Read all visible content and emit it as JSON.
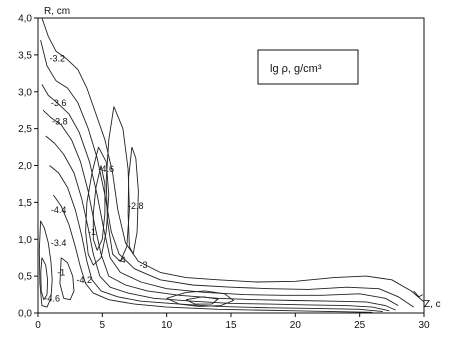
{
  "chart_data": {
    "type": "contour",
    "xlabel": "Z, c",
    "ylabel": "R, cm",
    "xlim": [
      0,
      30
    ],
    "ylim": [
      0,
      4.0
    ],
    "x_ticks": [
      {
        "value": 0,
        "label": "0"
      },
      {
        "value": 5,
        "label": "5"
      },
      {
        "value": 10,
        "label": "10"
      },
      {
        "value": 15,
        "label": "15"
      },
      {
        "value": 20,
        "label": "20"
      },
      {
        "value": 25,
        "label": "25"
      },
      {
        "value": 30,
        "label": "30"
      }
    ],
    "y_ticks": [
      {
        "value": 0.0,
        "label": "0,0"
      },
      {
        "value": 0.5,
        "label": "0,5"
      },
      {
        "value": 1.0,
        "label": "1,0"
      },
      {
        "value": 1.5,
        "label": "1,5"
      },
      {
        "value": 2.0,
        "label": "2,0"
      },
      {
        "value": 2.5,
        "label": "2,5"
      },
      {
        "value": 3.0,
        "label": "3,0"
      },
      {
        "value": 3.5,
        "label": "3,5"
      },
      {
        "value": 4.0,
        "label": "4,0"
      }
    ],
    "legend": {
      "text": "lg ρ, g/cm³",
      "placement": "top-right"
    },
    "grid": false,
    "contour_labels": [
      {
        "text": "-3.2",
        "x": 1.5,
        "y": 3.45
      },
      {
        "text": "-3.6",
        "x": 1.6,
        "y": 2.85
      },
      {
        "text": "-3.8",
        "x": 1.7,
        "y": 2.6
      },
      {
        "text": "-4.4",
        "x": 1.6,
        "y": 1.4
      },
      {
        "text": "-3.4",
        "x": 1.6,
        "y": 0.95
      },
      {
        "text": "-4.6",
        "x": 1.1,
        "y": 0.2
      },
      {
        "text": "-4.2",
        "x": 3.6,
        "y": 0.45
      },
      {
        "text": "-4.6",
        "x": 5.3,
        "y": 1.95
      },
      {
        "text": "-2.8",
        "x": 7.6,
        "y": 1.45
      },
      {
        "text": "-4",
        "x": 6.5,
        "y": 0.72
      },
      {
        "text": "-3",
        "x": 8.2,
        "y": 0.65
      },
      {
        "text": "-1",
        "x": 1.8,
        "y": 0.55
      },
      {
        "text": "-1",
        "x": 4.2,
        "y": 1.1
      }
    ],
    "contours": [
      {
        "points": [
          [
            0.3,
            4.0
          ],
          [
            0.8,
            3.75
          ],
          [
            1.4,
            3.55
          ],
          [
            2.2,
            3.45
          ],
          [
            3.1,
            3.3
          ],
          [
            3.8,
            3.05
          ],
          [
            4.5,
            2.7
          ],
          [
            5.2,
            2.35
          ],
          [
            5.8,
            1.9
          ],
          [
            6.2,
            1.4
          ],
          [
            6.8,
            0.95
          ],
          [
            7.8,
            0.7
          ],
          [
            9.5,
            0.55
          ],
          [
            11.5,
            0.48
          ],
          [
            14,
            0.45
          ],
          [
            17,
            0.42
          ],
          [
            20,
            0.43
          ],
          [
            23,
            0.48
          ],
          [
            25.5,
            0.5
          ],
          [
            27.5,
            0.45
          ],
          [
            29,
            0.3
          ],
          [
            30,
            0.15
          ]
        ]
      },
      {
        "points": [
          [
            0.2,
            3.7
          ],
          [
            0.7,
            3.35
          ],
          [
            1.4,
            3.15
          ],
          [
            2.3,
            3.05
          ],
          [
            3.1,
            2.85
          ],
          [
            3.9,
            2.5
          ],
          [
            4.6,
            2.1
          ],
          [
            5.2,
            1.6
          ],
          [
            5.7,
            1.1
          ],
          [
            6.3,
            0.8
          ],
          [
            7.5,
            0.6
          ],
          [
            9.5,
            0.45
          ],
          [
            12,
            0.38
          ],
          [
            15,
            0.35
          ],
          [
            18,
            0.33
          ],
          [
            21,
            0.32
          ],
          [
            24,
            0.35
          ],
          [
            26.5,
            0.33
          ],
          [
            28,
            0.22
          ],
          [
            29.2,
            0.08
          ]
        ]
      },
      {
        "points": [
          [
            0.3,
            3.1
          ],
          [
            0.8,
            2.95
          ],
          [
            1.5,
            2.85
          ],
          [
            2.4,
            2.7
          ],
          [
            3.2,
            2.45
          ],
          [
            4,
            2.05
          ],
          [
            4.6,
            1.6
          ],
          [
            5.1,
            1.15
          ],
          [
            5.6,
            0.75
          ],
          [
            6.4,
            0.55
          ],
          [
            8,
            0.42
          ],
          [
            10,
            0.33
          ],
          [
            13,
            0.28
          ],
          [
            16,
            0.25
          ],
          [
            19,
            0.24
          ],
          [
            22,
            0.24
          ],
          [
            25,
            0.26
          ],
          [
            27,
            0.2
          ],
          [
            28,
            0.1
          ]
        ]
      },
      {
        "points": [
          [
            0.4,
            2.75
          ],
          [
            1,
            2.65
          ],
          [
            1.8,
            2.55
          ],
          [
            2.6,
            2.35
          ],
          [
            3.3,
            2.05
          ],
          [
            3.9,
            1.65
          ],
          [
            4.4,
            1.2
          ],
          [
            4.9,
            0.8
          ],
          [
            5.5,
            0.5
          ],
          [
            6.8,
            0.38
          ],
          [
            8.5,
            0.3
          ],
          [
            11,
            0.24
          ],
          [
            14,
            0.2
          ],
          [
            17,
            0.18
          ],
          [
            20,
            0.17
          ],
          [
            23,
            0.16
          ],
          [
            25.5,
            0.15
          ],
          [
            27,
            0.1
          ],
          [
            27.8,
            0.04
          ]
        ]
      },
      {
        "points": [
          [
            0.6,
            2.4
          ],
          [
            1.3,
            2.3
          ],
          [
            2,
            2.15
          ],
          [
            2.8,
            1.9
          ],
          [
            3.4,
            1.55
          ],
          [
            3.9,
            1.15
          ],
          [
            4.3,
            0.8
          ],
          [
            4.8,
            0.5
          ],
          [
            5.6,
            0.35
          ],
          [
            7,
            0.27
          ],
          [
            9,
            0.2
          ],
          [
            12,
            0.16
          ],
          [
            15,
            0.13
          ],
          [
            18,
            0.12
          ],
          [
            21,
            0.11
          ],
          [
            24,
            0.1
          ],
          [
            26,
            0.08
          ],
          [
            27.3,
            0.03
          ]
        ]
      },
      {
        "points": [
          [
            0.9,
            2.0
          ],
          [
            1.6,
            1.9
          ],
          [
            2.3,
            1.7
          ],
          [
            2.9,
            1.4
          ],
          [
            3.4,
            1.05
          ],
          [
            3.8,
            0.7
          ],
          [
            4.2,
            0.45
          ],
          [
            4.9,
            0.3
          ],
          [
            6.2,
            0.22
          ],
          [
            8,
            0.16
          ],
          [
            11,
            0.12
          ],
          [
            14,
            0.09
          ],
          [
            18,
            0.07
          ],
          [
            22,
            0.06
          ],
          [
            25,
            0.05
          ],
          [
            26.8,
            0.02
          ]
        ]
      },
      {
        "points": [
          [
            1.2,
            1.6
          ],
          [
            1.8,
            1.45
          ],
          [
            2.4,
            1.2
          ],
          [
            2.9,
            0.9
          ],
          [
            3.3,
            0.62
          ],
          [
            3.7,
            0.4
          ],
          [
            4.3,
            0.27
          ],
          [
            5.5,
            0.18
          ],
          [
            7.5,
            0.12
          ],
          [
            10,
            0.08
          ],
          [
            14,
            0.05
          ],
          [
            20,
            0.03
          ],
          [
            26,
            0.01
          ]
        ]
      },
      {
        "points": [
          [
            4.7,
            2.25
          ],
          [
            4.2,
            1.9
          ],
          [
            3.8,
            1.5
          ],
          [
            3.7,
            1.1
          ],
          [
            3.9,
            0.8
          ],
          [
            4.3,
            0.65
          ],
          [
            4.9,
            0.75
          ],
          [
            5.3,
            1.1
          ],
          [
            5.5,
            1.6
          ],
          [
            5.3,
            2.05
          ],
          [
            4.7,
            2.25
          ]
        ]
      },
      {
        "points": [
          [
            4.9,
            2.0
          ],
          [
            4.5,
            1.7
          ],
          [
            4.3,
            1.35
          ],
          [
            4.3,
            1.0
          ],
          [
            4.6,
            0.85
          ],
          [
            5.0,
            1.0
          ],
          [
            5.2,
            1.35
          ],
          [
            5.2,
            1.75
          ],
          [
            4.9,
            2.0
          ]
        ]
      },
      {
        "points": [
          [
            5.9,
            2.8
          ],
          [
            5.5,
            2.35
          ],
          [
            5.3,
            1.8
          ],
          [
            5.4,
            1.25
          ],
          [
            5.8,
            0.8
          ],
          [
            6.4,
            0.7
          ],
          [
            6.9,
            0.9
          ],
          [
            7.1,
            1.4
          ],
          [
            7.0,
            1.95
          ],
          [
            6.6,
            2.5
          ],
          [
            5.9,
            2.8
          ]
        ]
      },
      {
        "points": [
          [
            7.3,
            2.25
          ],
          [
            7.05,
            1.85
          ],
          [
            7.0,
            1.35
          ],
          [
            7.1,
            0.9
          ],
          [
            7.4,
            0.8
          ],
          [
            7.7,
            1.1
          ],
          [
            7.8,
            1.65
          ],
          [
            7.6,
            2.1
          ],
          [
            7.3,
            2.25
          ]
        ]
      },
      {
        "points": [
          [
            0.2,
            1.25
          ],
          [
            0.5,
            1.15
          ],
          [
            0.8,
            0.95
          ],
          [
            1.0,
            0.7
          ],
          [
            1.1,
            0.45
          ],
          [
            1.0,
            0.2
          ],
          [
            0.7,
            0.08
          ],
          [
            0.3,
            0.1
          ],
          [
            0.15,
            0.4
          ],
          [
            0.1,
            0.85
          ],
          [
            0.2,
            1.25
          ]
        ]
      },
      {
        "points": [
          [
            0.3,
            0.75
          ],
          [
            0.6,
            0.65
          ],
          [
            0.75,
            0.45
          ],
          [
            0.7,
            0.25
          ],
          [
            0.45,
            0.18
          ],
          [
            0.25,
            0.3
          ],
          [
            0.22,
            0.55
          ],
          [
            0.3,
            0.75
          ]
        ]
      },
      {
        "points": [
          [
            1.8,
            0.75
          ],
          [
            2.3,
            0.68
          ],
          [
            2.7,
            0.5
          ],
          [
            2.8,
            0.3
          ],
          [
            2.5,
            0.18
          ],
          [
            2.0,
            0.2
          ],
          [
            1.7,
            0.4
          ],
          [
            1.8,
            0.75
          ]
        ]
      },
      {
        "points": [
          [
            10,
            0.2
          ],
          [
            11.5,
            0.28
          ],
          [
            13,
            0.3
          ],
          [
            14.5,
            0.26
          ],
          [
            15.2,
            0.17
          ],
          [
            14.2,
            0.1
          ],
          [
            12.5,
            0.09
          ],
          [
            11,
            0.12
          ],
          [
            10,
            0.2
          ]
        ]
      },
      {
        "points": [
          [
            11.5,
            0.18
          ],
          [
            12.8,
            0.22
          ],
          [
            14,
            0.19
          ],
          [
            13.5,
            0.12
          ],
          [
            12.2,
            0.12
          ],
          [
            11.5,
            0.18
          ]
        ]
      },
      {
        "points": [
          [
            29.2,
            0.3
          ],
          [
            29.6,
            0.22
          ],
          [
            29.9,
            0.25
          ]
        ]
      }
    ]
  }
}
